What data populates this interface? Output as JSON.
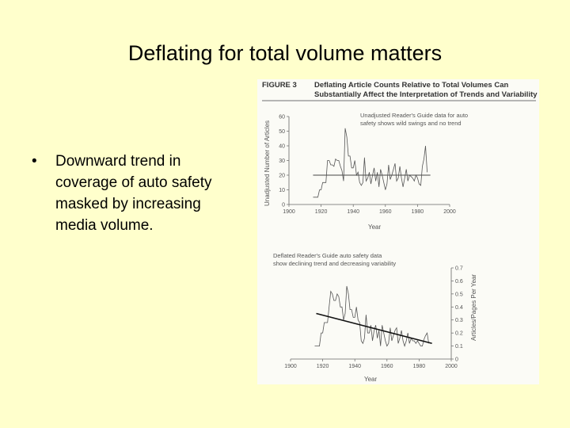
{
  "slide": {
    "title": "Deflating for total volume matters",
    "bullets": [
      "Downward trend in coverage of auto safety masked by increasing media volume."
    ]
  },
  "figure": {
    "label": "FIGURE 3",
    "heading_line1": "Deflating Article Counts Relative to Total Volumes Can",
    "heading_line2": "Substantially Affect the Interpretation of Trends and Variability"
  },
  "chart_data": [
    {
      "type": "line",
      "annotation_line1": "Unadjusted Reader's Guide data for auto",
      "annotation_line2": "safety shows wild swings and no trend",
      "xlabel": "Year",
      "ylabel": "Unadjusted Number of Articles",
      "xlim": [
        1900,
        2000
      ],
      "ylim": [
        0,
        60
      ],
      "xticks": [
        1900,
        1920,
        1940,
        1960,
        1980,
        2000
      ],
      "yticks": [
        0,
        10,
        20,
        30,
        40,
        50,
        60
      ],
      "x": [
        1915,
        1918,
        1919,
        1920,
        1921,
        1922,
        1923,
        1924,
        1925,
        1926,
        1927,
        1928,
        1929,
        1930,
        1931,
        1932,
        1933,
        1934,
        1935,
        1936,
        1937,
        1938,
        1939,
        1940,
        1941,
        1942,
        1943,
        1944,
        1945,
        1946,
        1947,
        1948,
        1949,
        1950,
        1951,
        1952,
        1953,
        1954,
        1955,
        1956,
        1957,
        1958,
        1959,
        1960,
        1961,
        1962,
        1963,
        1964,
        1965,
        1966,
        1967,
        1968,
        1969,
        1970,
        1971,
        1972,
        1973,
        1974,
        1975,
        1976,
        1977,
        1978,
        1979,
        1980,
        1981,
        1982,
        1983,
        1984,
        1985,
        1986
      ],
      "y": [
        5,
        5,
        10,
        10,
        15,
        15,
        15,
        30,
        30,
        27,
        27,
        26,
        31,
        30,
        30,
        26,
        23,
        16,
        52,
        46,
        33,
        33,
        25,
        25,
        30,
        20,
        22,
        15,
        13,
        15,
        32,
        16,
        18,
        22,
        14,
        20,
        25,
        16,
        22,
        12,
        24,
        20,
        15,
        10,
        14,
        27,
        17,
        20,
        24,
        28,
        16,
        18,
        26,
        18,
        12,
        18,
        24,
        16,
        20,
        19,
        18,
        16,
        20,
        18,
        14,
        13,
        26,
        31,
        40,
        22
      ],
      "reference_line_y": 20
    },
    {
      "type": "line",
      "annotation_line1": "Deflated Reader's Guide auto safety data",
      "annotation_line2": "show declining trend and decreasing variability",
      "xlabel": "Year",
      "ylabel": "Articles/Pages Per Year",
      "xlim": [
        1900,
        2000
      ],
      "ylim": [
        0,
        0.7
      ],
      "xticks": [
        1900,
        1920,
        1940,
        1960,
        1980,
        2000
      ],
      "yticks": [
        0,
        0.1,
        0.2,
        0.3,
        0.4,
        0.5,
        0.6,
        0.7
      ],
      "x": [
        1915,
        1918,
        1919,
        1920,
        1921,
        1922,
        1923,
        1924,
        1925,
        1926,
        1927,
        1928,
        1929,
        1930,
        1931,
        1932,
        1933,
        1934,
        1935,
        1936,
        1937,
        1938,
        1939,
        1940,
        1941,
        1942,
        1943,
        1944,
        1945,
        1946,
        1947,
        1948,
        1949,
        1950,
        1951,
        1952,
        1953,
        1954,
        1955,
        1956,
        1957,
        1958,
        1959,
        1960,
        1961,
        1962,
        1963,
        1964,
        1965,
        1966,
        1967,
        1968,
        1969,
        1970,
        1971,
        1972,
        1973,
        1974,
        1975,
        1976,
        1977,
        1978,
        1979,
        1980,
        1981,
        1982,
        1983,
        1984,
        1985,
        1986
      ],
      "y": [
        0.1,
        0.1,
        0.2,
        0.2,
        0.28,
        0.28,
        0.28,
        0.4,
        0.52,
        0.5,
        0.45,
        0.45,
        0.5,
        0.48,
        0.4,
        0.4,
        0.3,
        0.35,
        0.56,
        0.5,
        0.38,
        0.38,
        0.32,
        0.32,
        0.4,
        0.3,
        0.28,
        0.14,
        0.12,
        0.16,
        0.34,
        0.2,
        0.2,
        0.26,
        0.14,
        0.22,
        0.26,
        0.16,
        0.22,
        0.1,
        0.26,
        0.2,
        0.14,
        0.1,
        0.12,
        0.24,
        0.14,
        0.18,
        0.22,
        0.24,
        0.12,
        0.16,
        0.22,
        0.14,
        0.1,
        0.14,
        0.2,
        0.12,
        0.16,
        0.14,
        0.14,
        0.12,
        0.14,
        0.12,
        0.1,
        0.1,
        0.15,
        0.18,
        0.2,
        0.12
      ],
      "trend_line": {
        "x": [
          1916,
          1988
        ],
        "y": [
          0.35,
          0.12
        ]
      }
    }
  ]
}
